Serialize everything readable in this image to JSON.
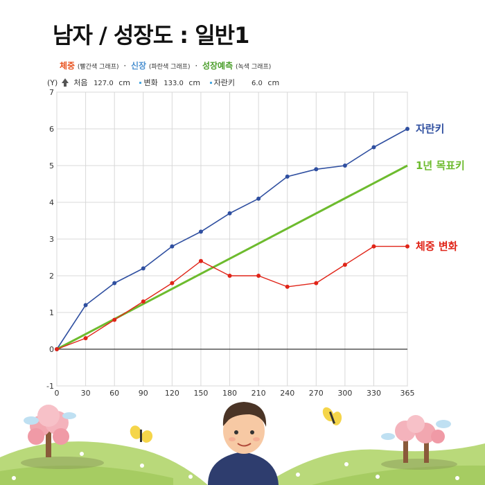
{
  "title": "남자 / 성장도 : 일반1",
  "legend_header": {
    "weight_label": "체중",
    "weight_note": "(빨간색 그래프)",
    "height_label": "신장",
    "height_note": "(파란색 그래프)",
    "predict_label": "성장예측",
    "predict_note": "(녹색 그래프)",
    "separator": "·"
  },
  "info": {
    "y_axis": "(Y)",
    "start_label": "처음",
    "start_value": "127.0",
    "start_unit": "cm",
    "change_label": "변화",
    "change_value": "133.0",
    "change_unit": "cm",
    "grow_label": "자란키",
    "grow_value": "6.0",
    "grow_unit": "cm"
  },
  "colors": {
    "height": "#2f4fa0",
    "weight": "#e02418",
    "target": "#6dbb2e",
    "grid": "#d8d8d8"
  },
  "chart_data": {
    "type": "line",
    "x": [
      0,
      30,
      60,
      90,
      120,
      150,
      180,
      210,
      240,
      270,
      300,
      330,
      365
    ],
    "xlim": [
      0,
      365
    ],
    "ylim": [
      -1,
      7
    ],
    "x_ticks": [
      "0",
      "30",
      "60",
      "90",
      "120",
      "150",
      "180",
      "210",
      "240",
      "270",
      "300",
      "330",
      "365"
    ],
    "y_ticks": [
      "-1",
      "0",
      "1",
      "2",
      "3",
      "4",
      "5",
      "6",
      "7"
    ],
    "grid": true,
    "series": [
      {
        "name": "자란키",
        "values": [
          0,
          1.2,
          1.8,
          2.2,
          2.8,
          3.2,
          3.7,
          4.1,
          4.7,
          4.9,
          5.0,
          5.5,
          6.0
        ],
        "markers": true
      },
      {
        "name": "1년 목표키",
        "values": [
          0,
          5.0
        ],
        "x": [
          0,
          365
        ],
        "markers": false
      },
      {
        "name": "체중 변화",
        "values": [
          0,
          0.3,
          0.8,
          1.3,
          1.8,
          2.4,
          2.0,
          2.0,
          1.7,
          1.8,
          2.3,
          2.8,
          2.8
        ],
        "markers": true
      }
    ]
  }
}
